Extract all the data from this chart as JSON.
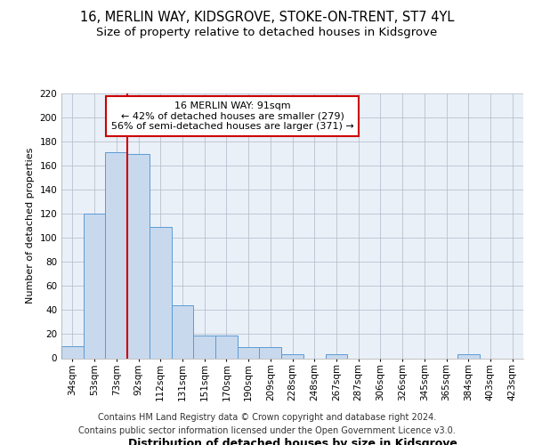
{
  "title1": "16, MERLIN WAY, KIDSGROVE, STOKE-ON-TRENT, ST7 4YL",
  "title2": "Size of property relative to detached houses in Kidsgrove",
  "xlabel": "Distribution of detached houses by size in Kidsgrove",
  "ylabel": "Number of detached properties",
  "categories": [
    "34sqm",
    "53sqm",
    "73sqm",
    "92sqm",
    "112sqm",
    "131sqm",
    "151sqm",
    "170sqm",
    "190sqm",
    "209sqm",
    "228sqm",
    "248sqm",
    "267sqm",
    "287sqm",
    "306sqm",
    "326sqm",
    "345sqm",
    "365sqm",
    "384sqm",
    "403sqm",
    "423sqm"
  ],
  "values": [
    10,
    120,
    171,
    170,
    109,
    44,
    19,
    19,
    9,
    9,
    3,
    0,
    3,
    0,
    0,
    0,
    0,
    0,
    3,
    0,
    0
  ],
  "bar_color": "#c8d9ee",
  "bar_edge_color": "#5b9bd5",
  "vline_index": 3,
  "vline_color": "#cc0000",
  "annotation_text": "16 MERLIN WAY: 91sqm\n← 42% of detached houses are smaller (279)\n56% of semi-detached houses are larger (371) →",
  "annotation_box_facecolor": "#ffffff",
  "annotation_box_edgecolor": "#cc0000",
  "ylim": [
    0,
    220
  ],
  "yticks": [
    0,
    20,
    40,
    60,
    80,
    100,
    120,
    140,
    160,
    180,
    200,
    220
  ],
  "footer1": "Contains HM Land Registry data © Crown copyright and database right 2024.",
  "footer2": "Contains public sector information licensed under the Open Government Licence v3.0.",
  "plot_bg_color": "#eaf0f8",
  "fig_bg_color": "#ffffff",
  "title1_fontsize": 10.5,
  "title2_fontsize": 9.5,
  "xlabel_fontsize": 9,
  "ylabel_fontsize": 8,
  "tick_fontsize": 7.5,
  "annot_fontsize": 8,
  "footer_fontsize": 7
}
